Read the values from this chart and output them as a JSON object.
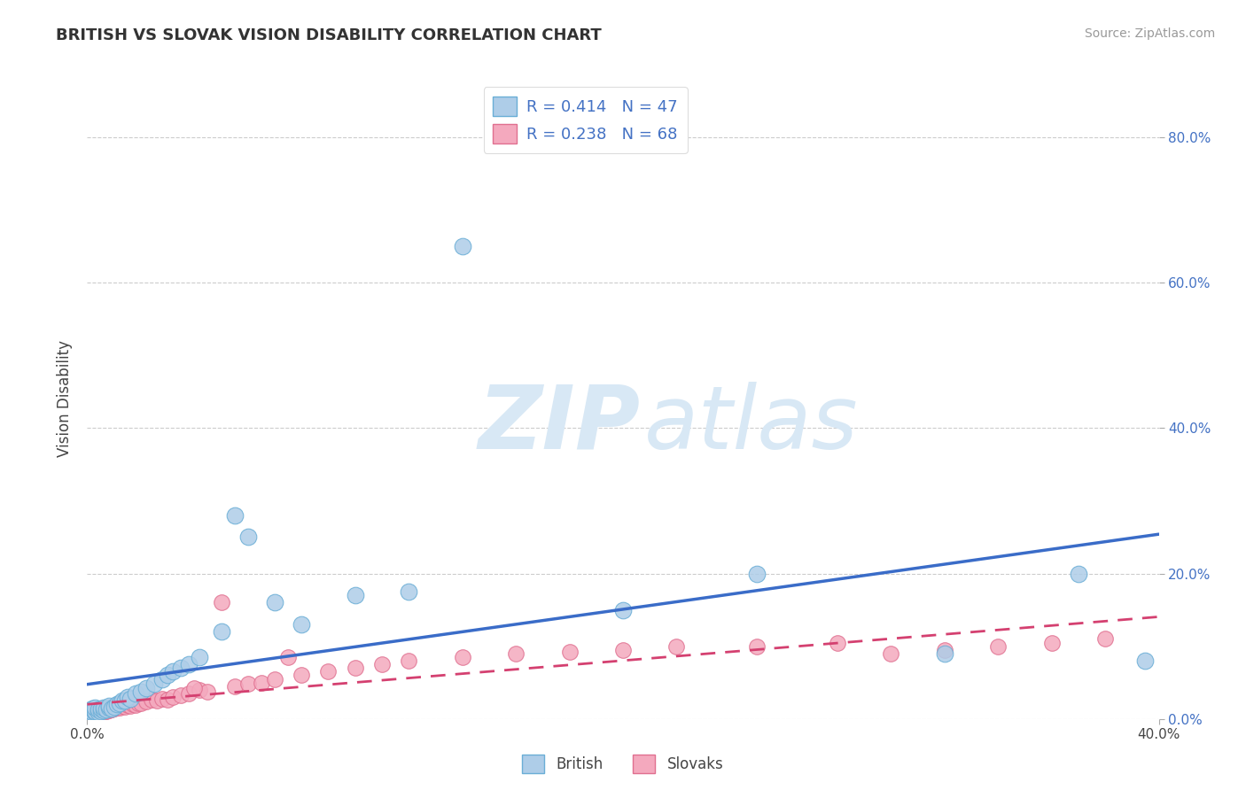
{
  "title": "BRITISH VS SLOVAK VISION DISABILITY CORRELATION CHART",
  "source": "Source: ZipAtlas.com",
  "ylabel_label": "Vision Disability",
  "y_tick_labels": [
    "0.0%",
    "20.0%",
    "40.0%",
    "60.0%",
    "80.0%"
  ],
  "y_tick_values": [
    0.0,
    0.2,
    0.4,
    0.6,
    0.8
  ],
  "x_lim": [
    0.0,
    0.4
  ],
  "y_lim": [
    0.0,
    0.88
  ],
  "british_R": 0.414,
  "british_N": 47,
  "slovak_R": 0.238,
  "slovak_N": 68,
  "british_color": "#aecde8",
  "british_edge_color": "#6aaed6",
  "slovak_color": "#f4a9be",
  "slovak_edge_color": "#e07090",
  "blue_line_color": "#3a6cc8",
  "pink_line_color": "#d44070",
  "watermark_ZIP": "ZIP",
  "watermark_atlas": "atlas",
  "watermark_color": "#d8e8f5",
  "british_x": [
    0.001,
    0.001,
    0.002,
    0.002,
    0.003,
    0.003,
    0.003,
    0.004,
    0.004,
    0.005,
    0.005,
    0.006,
    0.006,
    0.007,
    0.008,
    0.008,
    0.009,
    0.01,
    0.011,
    0.012,
    0.013,
    0.014,
    0.015,
    0.016,
    0.018,
    0.02,
    0.022,
    0.025,
    0.028,
    0.03,
    0.032,
    0.035,
    0.038,
    0.042,
    0.05,
    0.055,
    0.06,
    0.07,
    0.08,
    0.1,
    0.12,
    0.14,
    0.2,
    0.25,
    0.32,
    0.37,
    0.395
  ],
  "british_y": [
    0.008,
    0.012,
    0.01,
    0.014,
    0.009,
    0.011,
    0.015,
    0.01,
    0.013,
    0.011,
    0.014,
    0.012,
    0.015,
    0.013,
    0.016,
    0.018,
    0.014,
    0.017,
    0.02,
    0.022,
    0.025,
    0.025,
    0.03,
    0.028,
    0.035,
    0.038,
    0.042,
    0.048,
    0.055,
    0.06,
    0.065,
    0.07,
    0.075,
    0.085,
    0.12,
    0.28,
    0.25,
    0.16,
    0.13,
    0.17,
    0.175,
    0.65,
    0.15,
    0.2,
    0.09,
    0.2,
    0.08
  ],
  "slovak_x": [
    0.001,
    0.001,
    0.002,
    0.002,
    0.002,
    0.003,
    0.003,
    0.003,
    0.004,
    0.004,
    0.004,
    0.005,
    0.005,
    0.005,
    0.006,
    0.006,
    0.007,
    0.007,
    0.008,
    0.008,
    0.009,
    0.009,
    0.01,
    0.01,
    0.011,
    0.012,
    0.013,
    0.014,
    0.015,
    0.016,
    0.017,
    0.018,
    0.019,
    0.02,
    0.022,
    0.024,
    0.026,
    0.028,
    0.03,
    0.032,
    0.035,
    0.038,
    0.042,
    0.045,
    0.05,
    0.055,
    0.06,
    0.065,
    0.07,
    0.08,
    0.09,
    0.1,
    0.11,
    0.12,
    0.14,
    0.16,
    0.18,
    0.2,
    0.22,
    0.25,
    0.28,
    0.3,
    0.32,
    0.34,
    0.36,
    0.38,
    0.04,
    0.075
  ],
  "slovak_y": [
    0.005,
    0.008,
    0.006,
    0.009,
    0.011,
    0.007,
    0.01,
    0.012,
    0.008,
    0.011,
    0.013,
    0.009,
    0.012,
    0.014,
    0.01,
    0.013,
    0.011,
    0.014,
    0.012,
    0.015,
    0.013,
    0.016,
    0.014,
    0.017,
    0.015,
    0.016,
    0.018,
    0.017,
    0.019,
    0.018,
    0.02,
    0.019,
    0.021,
    0.022,
    0.024,
    0.026,
    0.025,
    0.028,
    0.027,
    0.03,
    0.032,
    0.035,
    0.04,
    0.038,
    0.16,
    0.045,
    0.048,
    0.05,
    0.055,
    0.06,
    0.065,
    0.07,
    0.075,
    0.08,
    0.085,
    0.09,
    0.092,
    0.095,
    0.1,
    0.1,
    0.105,
    0.09,
    0.095,
    0.1,
    0.105,
    0.11,
    0.042,
    0.085
  ]
}
